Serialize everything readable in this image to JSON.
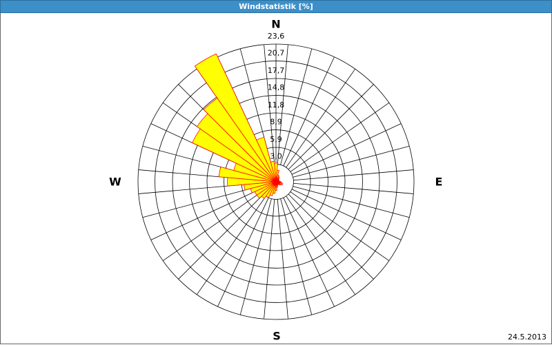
{
  "chart_data": {
    "type": "windrose",
    "title": "Windstatistik [%]",
    "date": "24.5.2013",
    "directions": [
      "N",
      "E",
      "S",
      "W"
    ],
    "categories": [
      null,
      null,
      null,
      null,
      null,
      null,
      null,
      null,
      null,
      null,
      null,
      null,
      null,
      null,
      null,
      null,
      null,
      null,
      null,
      null,
      null,
      null,
      null,
      null,
      null,
      null,
      null,
      null,
      null,
      null,
      null,
      null,
      null,
      null,
      null,
      null
    ],
    "values": [
      3.2,
      2.0,
      1.2,
      1.0,
      0.8,
      0.6,
      0.6,
      0.5,
      0.6,
      0.8,
      1.0,
      1.2,
      1.0,
      0.8,
      0.6,
      0.6,
      0.8,
      1.0,
      1.5,
      2.0,
      2.5,
      3.0,
      3.5,
      4.0,
      4.0,
      4.5,
      5.5,
      8.3,
      9.8,
      7.5,
      15.8,
      16.5,
      17.5,
      24.2,
      7.9,
      3.5
    ],
    "color": "#ffff00",
    "edge_color": "#ff0000",
    "rlim": [
      0,
      23.6
    ],
    "rticks": [
      {
        "value": 3.0,
        "label": "3,0"
      },
      {
        "value": 5.9,
        "label": "5,9"
      },
      {
        "value": 8.9,
        "label": "8,9"
      },
      {
        "value": 11.8,
        "label": "11,8"
      },
      {
        "value": 14.8,
        "label": "14,8"
      },
      {
        "value": 17.7,
        "label": "17,7"
      },
      {
        "value": 20.7,
        "label": "20,7"
      },
      {
        "value": 23.6,
        "label": "23,6"
      }
    ],
    "grid": true
  }
}
